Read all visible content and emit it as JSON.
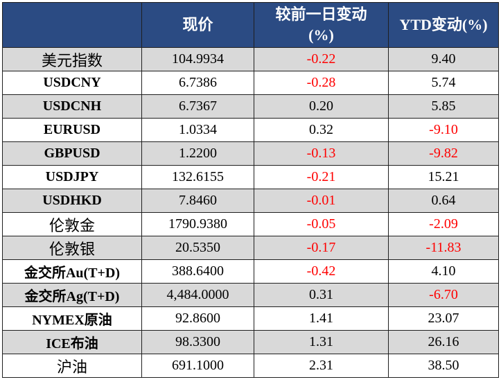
{
  "header": {
    "col_name": "",
    "col_price": "现价",
    "col_daily_change_line1": "较前一日变动",
    "col_daily_change_line2": "(%)",
    "col_ytd_change": "YTD变动(%)"
  },
  "colors": {
    "header_bg": "#2b4b83",
    "header_text": "#ffffff",
    "row_shade": "#d9d9d9",
    "negative": "#ff0000",
    "positive": "#000000"
  },
  "rows": [
    {
      "name": "美元指数",
      "price": "104.9934",
      "daily": "-0.22",
      "ytd": "9.40"
    },
    {
      "name": "USDCNY",
      "price": "6.7386",
      "daily": "-0.28",
      "ytd": "5.74"
    },
    {
      "name": "USDCNH",
      "price": "6.7367",
      "daily": "0.20",
      "ytd": "5.85"
    },
    {
      "name": "EURUSD",
      "price": "1.0334",
      "daily": "0.32",
      "ytd": "-9.10"
    },
    {
      "name": "GBPUSD",
      "price": "1.2200",
      "daily": "-0.13",
      "ytd": "-9.82"
    },
    {
      "name": "USDJPY",
      "price": "132.6155",
      "daily": "-0.21",
      "ytd": "15.21"
    },
    {
      "name": "USDHKD",
      "price": "7.8460",
      "daily": "-0.01",
      "ytd": "0.64"
    },
    {
      "name": "伦敦金",
      "price": "1790.9380",
      "daily": "-0.05",
      "ytd": "-2.09"
    },
    {
      "name": "伦敦银",
      "price": "20.5350",
      "daily": "-0.17",
      "ytd": "-11.83"
    },
    {
      "name": "金交所Au(T+D)",
      "price": "388.6400",
      "daily": "-0.42",
      "ytd": "4.10"
    },
    {
      "name": "金交所Ag(T+D)",
      "price": "4,484.0000",
      "daily": "0.31",
      "ytd": "-6.70"
    },
    {
      "name": "NYMEX原油",
      "price": "92.8600",
      "daily": "1.41",
      "ytd": "23.07"
    },
    {
      "name": "ICE布油",
      "price": "98.3300",
      "daily": "1.31",
      "ytd": "26.16"
    },
    {
      "name": "沪油",
      "price": "691.1000",
      "daily": "2.31",
      "ytd": "38.50"
    }
  ]
}
